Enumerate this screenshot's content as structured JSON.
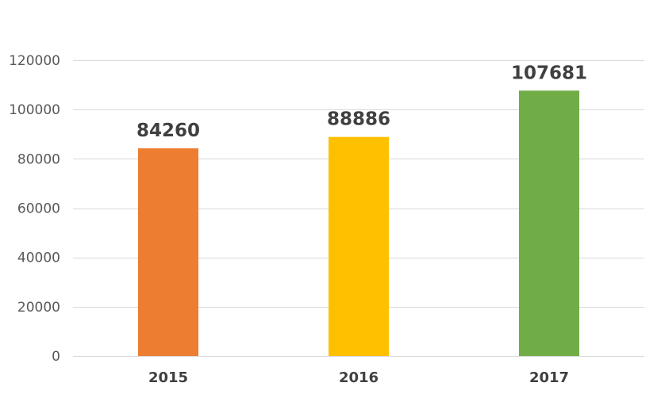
{
  "chart_data": {
    "type": "bar",
    "title": "",
    "xlabel": "",
    "ylabel": "",
    "categories": [
      "2015",
      "2016",
      "2017"
    ],
    "values": [
      84260,
      88886,
      107681
    ],
    "data_labels": [
      "84260",
      "88886",
      "107681"
    ],
    "bar_colors": [
      "#ED7D31",
      "#FFC000",
      "#70AD47"
    ],
    "ylim": [
      0,
      120000
    ],
    "yticks": [
      0,
      20000,
      40000,
      60000,
      80000,
      100000,
      120000
    ],
    "ytick_labels": [
      "0",
      "20000",
      "40000",
      "60000",
      "80000",
      "100000",
      "120000"
    ],
    "grid": true,
    "legend": "none"
  }
}
